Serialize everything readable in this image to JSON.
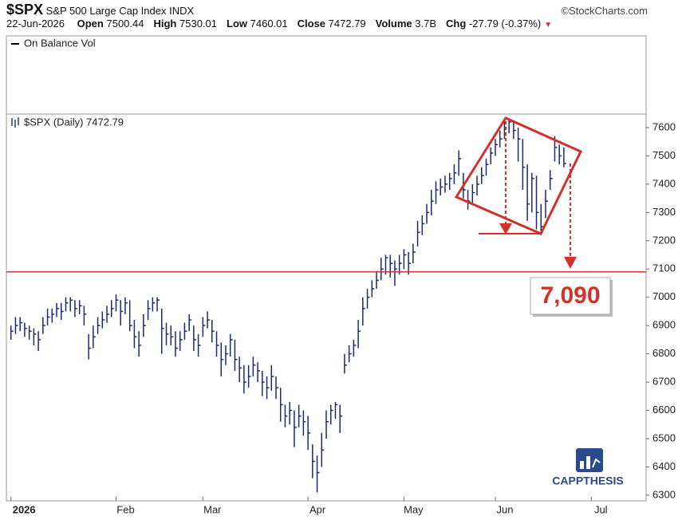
{
  "header": {
    "symbol": "$SPX",
    "name": "S&P 500 Large Cap Index INDX",
    "source": "©StockCharts.com",
    "date": "22-Jun-2026",
    "fields": [
      {
        "label": "Open",
        "value": "7500.44"
      },
      {
        "label": "High",
        "value": "7530.01"
      },
      {
        "label": "Low",
        "value": "7460.01"
      },
      {
        "label": "Close",
        "value": "7472.79"
      },
      {
        "label": "Volume",
        "value": "3.7B"
      },
      {
        "label": "Chg",
        "value": "-27.79 (-0.37%)"
      }
    ]
  },
  "logo": "CAPPTHESIS",
  "chart_data": {
    "type": "ohlc",
    "indicator_label": "On Balance Vol",
    "series_label": "$SPX (Daily) 7472.79",
    "color": "#1c2a6e",
    "close": [
      6880,
      6900,
      6910,
      6890,
      6880,
      6870,
      6850,
      6900,
      6930,
      6940,
      6960,
      6950,
      6980,
      6990,
      6960,
      6970,
      6940,
      6820,
      6860,
      6900,
      6920,
      6940,
      6960,
      6990,
      6950,
      6980,
      6900,
      6860,
      6830,
      6900,
      6960,
      6980,
      6990,
      6890,
      6870,
      6860,
      6820,
      6850,
      6880,
      6920,
      6850,
      6830,
      6900,
      6920,
      6880,
      6830,
      6780,
      6800,
      6850,
      6780,
      6750,
      6700,
      6720,
      6760,
      6740,
      6700,
      6680,
      6720,
      6680,
      6620,
      6580,
      6600,
      6540,
      6580,
      6560,
      6520,
      6420,
      6380,
      6460,
      6560,
      6600,
      6620,
      6580,
      6760,
      6800,
      6830,
      6880,
      6960,
      7000,
      7030,
      7060,
      7100,
      7140,
      7120,
      7100,
      7120,
      7150,
      7120,
      7160,
      7230,
      7260,
      7300,
      7340,
      7380,
      7390,
      7400,
      7420,
      7440,
      7490,
      7380,
      7340,
      7370,
      7400,
      7430,
      7470,
      7510,
      7540,
      7560,
      7600,
      7620,
      7590,
      7560,
      7460,
      7330,
      7420,
      7300,
      7250,
      7340,
      7420,
      7530,
      7500,
      7472.79
    ],
    "high": [
      6900,
      6930,
      6930,
      6910,
      6900,
      6890,
      6880,
      6930,
      6960,
      6960,
      6980,
      6980,
      7000,
      7000,
      6990,
      6990,
      6970,
      6870,
      6900,
      6930,
      6950,
      6970,
      6990,
      7010,
      6990,
      7000,
      6990,
      6920,
      6880,
      6940,
      6990,
      7000,
      7000,
      6960,
      6910,
      6900,
      6880,
      6880,
      6910,
      6940,
      6900,
      6870,
      6930,
      6950,
      6920,
      6880,
      6840,
      6830,
      6870,
      6850,
      6790,
      6760,
      6760,
      6790,
      6770,
      6740,
      6720,
      6760,
      6720,
      6680,
      6620,
      6630,
      6600,
      6620,
      6600,
      6580,
      6480,
      6440,
      6520,
      6600,
      6620,
      6630,
      6620,
      6800,
      6830,
      6850,
      6920,
      7000,
      7030,
      7060,
      7090,
      7140,
      7150,
      7150,
      7130,
      7150,
      7170,
      7160,
      7190,
      7270,
      7290,
      7330,
      7380,
      7410,
      7420,
      7430,
      7440,
      7470,
      7520,
      7440,
      7380,
      7400,
      7430,
      7460,
      7490,
      7530,
      7560,
      7590,
      7620,
      7630,
      7620,
      7600,
      7560,
      7470,
      7440,
      7430,
      7330,
      7380,
      7450,
      7570,
      7540,
      7530.01
    ],
    "low": [
      6850,
      6870,
      6880,
      6860,
      6850,
      6830,
      6810,
      6870,
      6900,
      6910,
      6930,
      6920,
      6950,
      6950,
      6930,
      6940,
      6900,
      6780,
      6820,
      6870,
      6890,
      6910,
      6930,
      6950,
      6900,
      6940,
      6880,
      6820,
      6790,
      6860,
      6920,
      6950,
      6950,
      6800,
      6830,
      6830,
      6790,
      6810,
      6850,
      6880,
      6810,
      6790,
      6860,
      6890,
      6840,
      6790,
      6720,
      6760,
      6790,
      6740,
      6700,
      6660,
      6680,
      6720,
      6700,
      6650,
      6640,
      6670,
      6640,
      6560,
      6540,
      6550,
      6470,
      6540,
      6510,
      6460,
      6360,
      6310,
      6400,
      6500,
      6550,
      6570,
      6520,
      6730,
      6770,
      6790,
      6820,
      6900,
      6960,
      7000,
      7030,
      7060,
      7080,
      7070,
      7040,
      7080,
      7100,
      7080,
      7120,
      7180,
      7220,
      7260,
      7290,
      7330,
      7360,
      7370,
      7380,
      7400,
      7430,
      7350,
      7310,
      7330,
      7360,
      7400,
      7430,
      7470,
      7500,
      7530,
      7560,
      7580,
      7560,
      7480,
      7380,
      7270,
      7300,
      7240,
      7220,
      7280,
      7380,
      7480,
      7470,
      7460.01
    ],
    "xlim": [
      -1,
      139
    ],
    "xticks": [
      {
        "value": 0,
        "label": "2026"
      },
      {
        "value": 23,
        "label": "Feb"
      },
      {
        "value": 42,
        "label": "Mar"
      },
      {
        "value": 65,
        "label": "Apr"
      },
      {
        "value": 86,
        "label": "May"
      },
      {
        "value": 106,
        "label": "Jun"
      },
      {
        "value": 127,
        "label": "Jul"
      }
    ],
    "ylim": [
      6280,
      7648
    ],
    "yticks": [
      6300,
      6400,
      6500,
      6600,
      6700,
      6800,
      6900,
      7000,
      7100,
      7200,
      7300,
      7400,
      7500,
      7600
    ],
    "annotation": {
      "value": 7090,
      "label": "7,090",
      "color": "#d3302a"
    }
  }
}
